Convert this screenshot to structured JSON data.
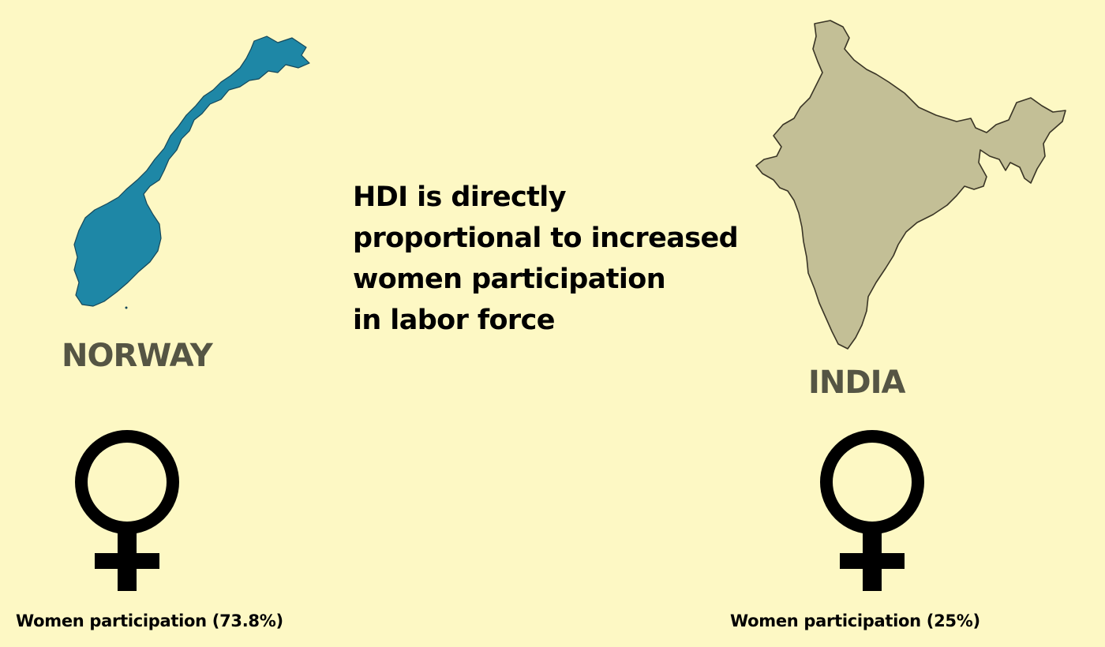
{
  "headline": {
    "line1": "HDI is directly",
    "line2": "proportional to increased",
    "line3": "women participation",
    "line4": "in labor force"
  },
  "left": {
    "country": "NORWAY",
    "participation_text": "Women participation (73.8%)",
    "participation_value": 73.8,
    "map_color": "#1e87a6",
    "icon": "female-symbol-icon"
  },
  "right": {
    "country": "INDIA",
    "participation_text": "Women participation (25%)",
    "participation_value": 25,
    "map_color": "#c3bf96",
    "icon": "female-symbol-icon"
  },
  "colors": {
    "background": "#fdf8c4",
    "country_label": "#555544",
    "text": "#000000"
  }
}
